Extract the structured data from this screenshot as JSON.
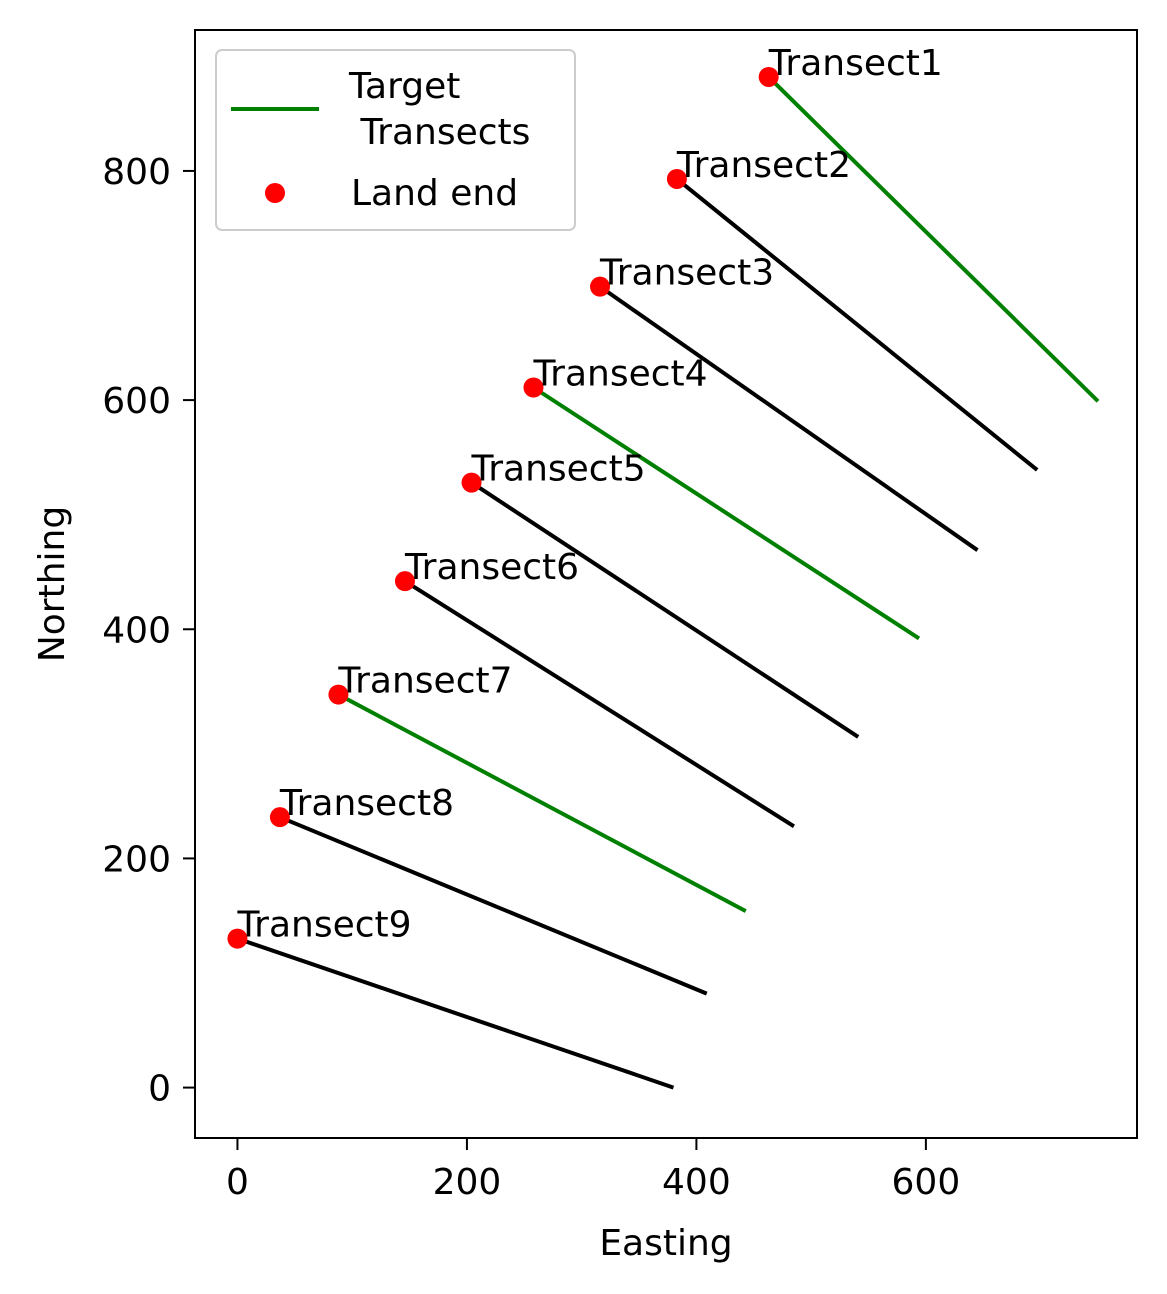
{
  "chart_data": {
    "type": "line",
    "xlabel": "Easting",
    "ylabel": "Northing",
    "xlim": [
      -37,
      784
    ],
    "ylim": [
      -44,
      923
    ],
    "xticks": [
      0,
      200,
      400,
      600
    ],
    "yticks": [
      0,
      200,
      400,
      600,
      800
    ],
    "legend": {
      "placement": "top-left",
      "entries": [
        {
          "label": "Target\n Transects",
          "kind": "line",
          "color": "#008000"
        },
        {
          "label": "Land end",
          "kind": "marker",
          "color": "#ff0000"
        }
      ]
    },
    "colors": {
      "target": "#008000",
      "other": "#000000",
      "land_end": "#ff0000"
    },
    "transects": [
      {
        "name": "Transect1",
        "target": true,
        "land": [
          463,
          882
        ],
        "sea": [
          750,
          599
        ]
      },
      {
        "name": "Transect2",
        "target": false,
        "land": [
          383,
          793
        ],
        "sea": [
          697,
          539
        ]
      },
      {
        "name": "Transect3",
        "target": false,
        "land": [
          316,
          699
        ],
        "sea": [
          645,
          469
        ]
      },
      {
        "name": "Transect4",
        "target": true,
        "land": [
          258,
          611
        ],
        "sea": [
          594,
          392
        ]
      },
      {
        "name": "Transect5",
        "target": false,
        "land": [
          204,
          528
        ],
        "sea": [
          541,
          306
        ]
      },
      {
        "name": "Transect6",
        "target": false,
        "land": [
          146,
          442
        ],
        "sea": [
          485,
          228
        ]
      },
      {
        "name": "Transect7",
        "target": true,
        "land": [
          88,
          343
        ],
        "sea": [
          443,
          154
        ]
      },
      {
        "name": "Transect8",
        "target": false,
        "land": [
          37,
          236
        ],
        "sea": [
          409,
          82
        ]
      },
      {
        "name": "Transect9",
        "target": false,
        "land": [
          0,
          130
        ],
        "sea": [
          380,
          0
        ]
      }
    ]
  }
}
